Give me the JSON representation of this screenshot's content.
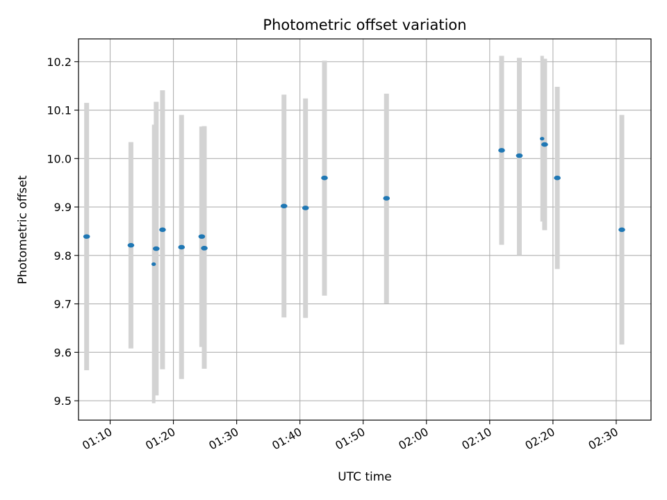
{
  "chart_data": {
    "type": "scatter",
    "title": "Photometric offset variation",
    "xlabel": "UTC time",
    "ylabel": "Photometric offset",
    "x_unit": "minutes",
    "xlim": [
      "01:05:00",
      "02:35:30"
    ],
    "ylim": [
      9.46,
      10.247
    ],
    "grid": true,
    "x_ticks": [
      "01:10",
      "01:20",
      "01:30",
      "01:40",
      "01:50",
      "02:00",
      "02:10",
      "02:20",
      "02:30"
    ],
    "y_ticks": [
      9.5,
      9.6,
      9.7,
      9.8,
      9.9,
      10.0,
      10.1,
      10.2
    ],
    "y_tick_labels": [
      "9.5",
      "9.6",
      "9.7",
      "9.8",
      "9.9",
      "10.0",
      "10.1",
      "10.2"
    ],
    "errorbar_color": "#d3d3d3",
    "point_color": "#1f77b4",
    "points": [
      {
        "x": "01:06:17",
        "y": 9.839,
        "ylo": 9.563,
        "yhi": 10.115
      },
      {
        "x": "01:13:17",
        "y": 9.821,
        "ylo": 9.608,
        "yhi": 10.034
      },
      {
        "x": "01:16:53",
        "y": 9.782,
        "ylo": 9.495,
        "yhi": 10.07,
        "small": true
      },
      {
        "x": "01:17:17",
        "y": 9.814,
        "ylo": 9.511,
        "yhi": 10.117
      },
      {
        "x": "01:18:17",
        "y": 9.853,
        "ylo": 9.565,
        "yhi": 10.141
      },
      {
        "x": "01:21:17",
        "y": 9.817,
        "ylo": 9.545,
        "yhi": 10.09
      },
      {
        "x": "01:24:29",
        "y": 9.839,
        "ylo": 9.611,
        "yhi": 10.066
      },
      {
        "x": "01:24:53",
        "y": 9.815,
        "ylo": 9.566,
        "yhi": 10.067
      },
      {
        "x": "01:37:29",
        "y": 9.902,
        "ylo": 9.672,
        "yhi": 10.132
      },
      {
        "x": "01:40:53",
        "y": 9.898,
        "ylo": 9.671,
        "yhi": 10.124
      },
      {
        "x": "01:43:53",
        "y": 9.96,
        "ylo": 9.717,
        "yhi": 10.202
      },
      {
        "x": "01:53:41",
        "y": 9.918,
        "ylo": 9.701,
        "yhi": 10.134
      },
      {
        "x": "02:11:53",
        "y": 10.017,
        "ylo": 9.822,
        "yhi": 10.212
      },
      {
        "x": "02:14:41",
        "y": 10.006,
        "ylo": 9.801,
        "yhi": 10.208
      },
      {
        "x": "02:18:17",
        "y": 10.041,
        "ylo": 9.87,
        "yhi": 10.212,
        "small": true
      },
      {
        "x": "02:18:41",
        "y": 10.029,
        "ylo": 9.852,
        "yhi": 10.206
      },
      {
        "x": "02:20:41",
        "y": 9.96,
        "ylo": 9.772,
        "yhi": 10.148
      },
      {
        "x": "02:30:53",
        "y": 9.853,
        "ylo": 9.616,
        "yhi": 10.09
      }
    ]
  }
}
